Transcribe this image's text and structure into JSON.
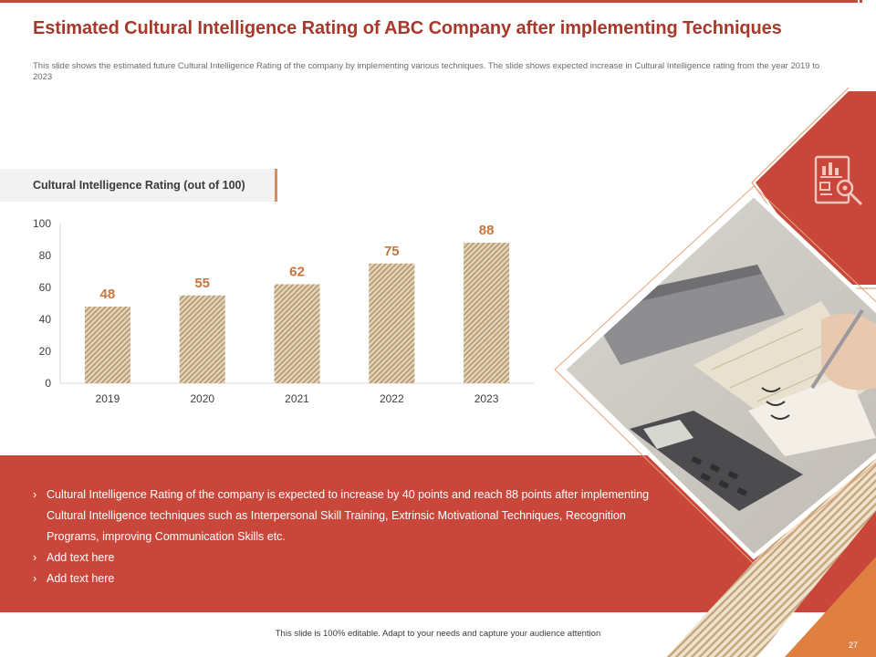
{
  "slide": {
    "title": "Estimated Cultural Intelligence Rating of ABC Company after implementing Techniques",
    "description": "This slide shows the estimated future Cultural Intelligence  Rating of the company by implementing  various techniques. The slide shows expected increase in Cultural Intelligence rating from the year 2019 to 2023",
    "chart_heading": "Cultural Intelligence Rating (out of 100)",
    "bullets": [
      "Cultural Intelligence Rating of the company is expected to increase by 40 points and reach 88 points after implementing Cultural Intelligence techniques such as Interpersonal Skill Training, Extrinsic Motivational Techniques, Recognition Programs, improving Communication Skills etc.",
      "Add text here",
      "Add text here"
    ],
    "bullet_marker": "›",
    "footer": "This slide is 100% editable.  Adapt to your needs and capture your audience attention",
    "page_number": "27",
    "icon": "report-analysis-icon"
  },
  "colors": {
    "brand_red": "#c9473a",
    "title_red": "#a8382c",
    "accent_orange": "#d98c5f",
    "bar_fill": "#c9b08a",
    "value_label": "#c8763a",
    "bottom_orange": "#e08040"
  },
  "chart_data": {
    "type": "bar",
    "categories": [
      "2019",
      "2020",
      "2021",
      "2022",
      "2023"
    ],
    "values": [
      48,
      55,
      62,
      75,
      88
    ],
    "title": "Cultural Intelligence Rating (out of 100)",
    "xlabel": "",
    "ylabel": "",
    "ylim": [
      0,
      100
    ],
    "yticks": [
      0,
      20,
      40,
      60,
      80,
      100
    ],
    "grid": false,
    "data_labels": true
  }
}
